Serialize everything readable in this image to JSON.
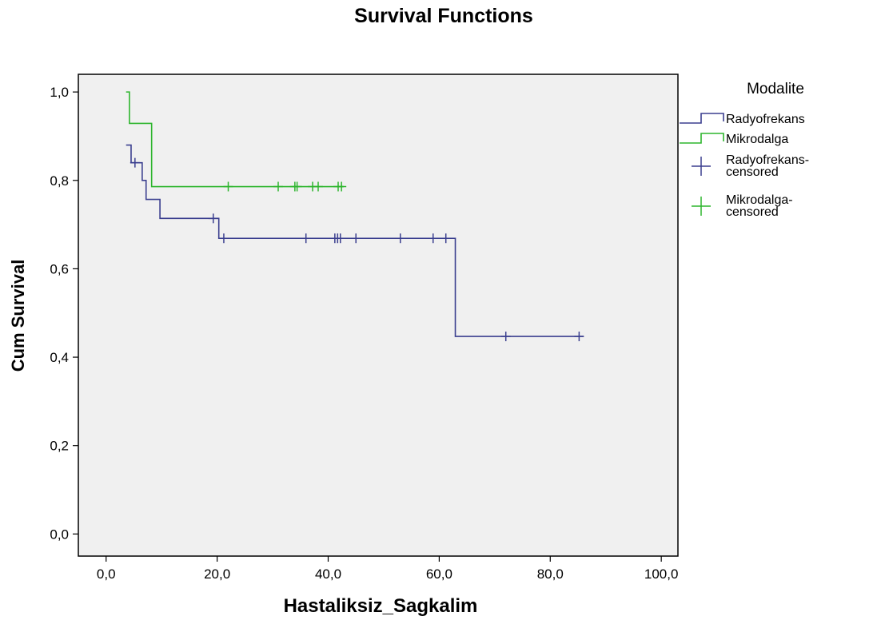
{
  "chart_data": {
    "type": "line",
    "subtype": "survival-step",
    "title": "Survival Functions",
    "xlabel": "Hastaliksiz_Sagkalim",
    "ylabel": "Cum Survival",
    "xlim": [
      -5,
      103
    ],
    "ylim": [
      -0.05,
      1.04
    ],
    "x_ticks": [
      0,
      20,
      40,
      60,
      80,
      100
    ],
    "x_tick_labels": [
      "0,0",
      "20,0",
      "40,0",
      "60,0",
      "80,0",
      "100,0"
    ],
    "y_ticks": [
      0,
      0.2,
      0.4,
      0.6,
      0.8,
      1.0
    ],
    "y_tick_labels": [
      "0,0",
      "0,2",
      "0,4",
      "0,6",
      "0,8",
      "1,0"
    ],
    "plot_background": "#f0f0f0",
    "grid": false,
    "legend_title": "Modalite",
    "legend_position": "right",
    "series": [
      {
        "name": "Radyofrekans",
        "color": "#3b3f8f",
        "steps": [
          [
            3.6,
            0.88
          ],
          [
            4.5,
            0.84
          ],
          [
            6.5,
            0.8
          ],
          [
            7.2,
            0.757
          ],
          [
            9.7,
            0.714
          ],
          [
            20.3,
            0.669
          ],
          [
            62.9,
            0.447
          ],
          [
            86,
            0.447
          ]
        ],
        "censored_name": "Radyofrekans-censored",
        "censored": [
          [
            5.2,
            0.84
          ],
          [
            19.3,
            0.714
          ],
          [
            21.2,
            0.669
          ],
          [
            36,
            0.669
          ],
          [
            41.2,
            0.669
          ],
          [
            41.7,
            0.669
          ],
          [
            42.2,
            0.669
          ],
          [
            45,
            0.669
          ],
          [
            53,
            0.669
          ],
          [
            58.9,
            0.669
          ],
          [
            61.2,
            0.669
          ],
          [
            72,
            0.447
          ],
          [
            85.2,
            0.447
          ]
        ]
      },
      {
        "name": "Mikrodalga",
        "color": "#2db52d",
        "steps": [
          [
            3.6,
            1.0
          ],
          [
            4.2,
            0.929
          ],
          [
            8.2,
            0.786
          ],
          [
            42.8,
            0.786
          ]
        ],
        "censored_name": "Mikrodalga-censored",
        "censored": [
          [
            22,
            0.786
          ],
          [
            31,
            0.786
          ],
          [
            34,
            0.786
          ],
          [
            34.4,
            0.786
          ],
          [
            37.2,
            0.786
          ],
          [
            38.2,
            0.786
          ],
          [
            41.8,
            0.786
          ],
          [
            42.4,
            0.786
          ]
        ]
      }
    ],
    "legend_entries": [
      {
        "label_lines": [
          "Radyofrekans"
        ],
        "series": 0,
        "kind": "line"
      },
      {
        "label_lines": [
          "Mikrodalga"
        ],
        "series": 1,
        "kind": "line"
      },
      {
        "label_lines": [
          "Radyofrekans-",
          "censored"
        ],
        "series": 0,
        "kind": "censor"
      },
      {
        "label_lines": [
          "Mikrodalga-",
          "censored"
        ],
        "series": 1,
        "kind": "censor"
      }
    ]
  }
}
